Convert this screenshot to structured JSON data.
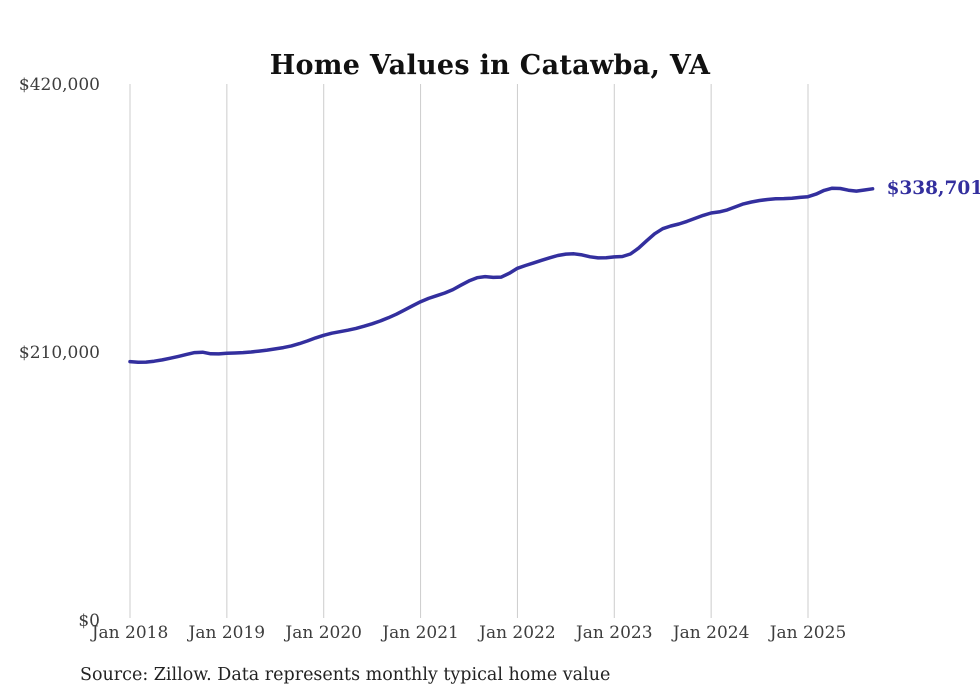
{
  "chart": {
    "title": "Home Values in Catawba, VA",
    "latest_value_label": "$338,701",
    "source_note": "Source: Zillow. Data represents monthly typical home value",
    "line_color": "#332f9e",
    "gridline_color": "#cccccc",
    "tick_text_color": "#3d3d3d"
  },
  "chart_data": {
    "type": "line",
    "title": "Home Values in Catawba, VA",
    "series_name": "Monthly typical home value",
    "ylabel": "",
    "xlabel": "",
    "ylim": [
      0,
      420000
    ],
    "grid": "vertical-yearly-gridlines-only",
    "legend": "none",
    "last_point_label": "$338,701",
    "y_ticks": [
      {
        "value": 420000,
        "label": "$420,000"
      },
      {
        "value": 210000,
        "label": "$210,000"
      },
      {
        "value": 0,
        "label": "$0"
      }
    ],
    "x_ticks": [
      "Jan 2018",
      "Jan 2019",
      "Jan 2020",
      "Jan 2021",
      "Jan 2022",
      "Jan 2023",
      "Jan 2024",
      "Jan 2025"
    ],
    "x": [
      "2018-01",
      "2018-02",
      "2018-03",
      "2018-04",
      "2018-05",
      "2018-06",
      "2018-07",
      "2018-08",
      "2018-09",
      "2018-10",
      "2018-11",
      "2018-12",
      "2019-01",
      "2019-02",
      "2019-03",
      "2019-04",
      "2019-05",
      "2019-06",
      "2019-07",
      "2019-08",
      "2019-09",
      "2019-10",
      "2019-11",
      "2019-12",
      "2020-01",
      "2020-02",
      "2020-03",
      "2020-04",
      "2020-05",
      "2020-06",
      "2020-07",
      "2020-08",
      "2020-09",
      "2020-10",
      "2020-11",
      "2020-12",
      "2021-01",
      "2021-02",
      "2021-03",
      "2021-04",
      "2021-05",
      "2021-06",
      "2021-07",
      "2021-08",
      "2021-09",
      "2021-10",
      "2021-11",
      "2021-12",
      "2022-01",
      "2022-02",
      "2022-03",
      "2022-04",
      "2022-05",
      "2022-06",
      "2022-07",
      "2022-08",
      "2022-09",
      "2022-10",
      "2022-11",
      "2022-12",
      "2023-01",
      "2023-02",
      "2023-03",
      "2023-04",
      "2023-05",
      "2023-06",
      "2023-07",
      "2023-08",
      "2023-09",
      "2023-10",
      "2023-11",
      "2023-12",
      "2024-01",
      "2024-02",
      "2024-03",
      "2024-04",
      "2024-05",
      "2024-06",
      "2024-07",
      "2024-08",
      "2024-09",
      "2024-10",
      "2024-11",
      "2024-12",
      "2025-01",
      "2025-02",
      "2025-03",
      "2025-04",
      "2025-05",
      "2025-06",
      "2025-07",
      "2025-08",
      "2025-09"
    ],
    "values": [
      203300,
      202700,
      202900,
      203600,
      204600,
      205900,
      207300,
      208900,
      210300,
      210600,
      209400,
      209300,
      209800,
      210000,
      210300,
      210800,
      211500,
      212300,
      213200,
      214200,
      215600,
      217400,
      219500,
      221800,
      223900,
      225500,
      226700,
      227900,
      229300,
      231000,
      232900,
      235100,
      237600,
      240400,
      243600,
      247000,
      250200,
      252800,
      254900,
      257000,
      259700,
      263100,
      266500,
      269000,
      269900,
      269200,
      269500,
      272500,
      276400,
      278600,
      280600,
      282600,
      284600,
      286400,
      287500,
      287700,
      286900,
      285400,
      284500,
      284700,
      285300,
      285600,
      287600,
      292100,
      297900,
      303400,
      307400,
      309500,
      311100,
      313100,
      315500,
      317800,
      319700,
      320600,
      322100,
      324500,
      326800,
      328300,
      329500,
      330300,
      330800,
      331000,
      331300,
      331900,
      332500,
      334500,
      337400,
      339100,
      338900,
      337600,
      336900,
      337700,
      338701
    ]
  }
}
